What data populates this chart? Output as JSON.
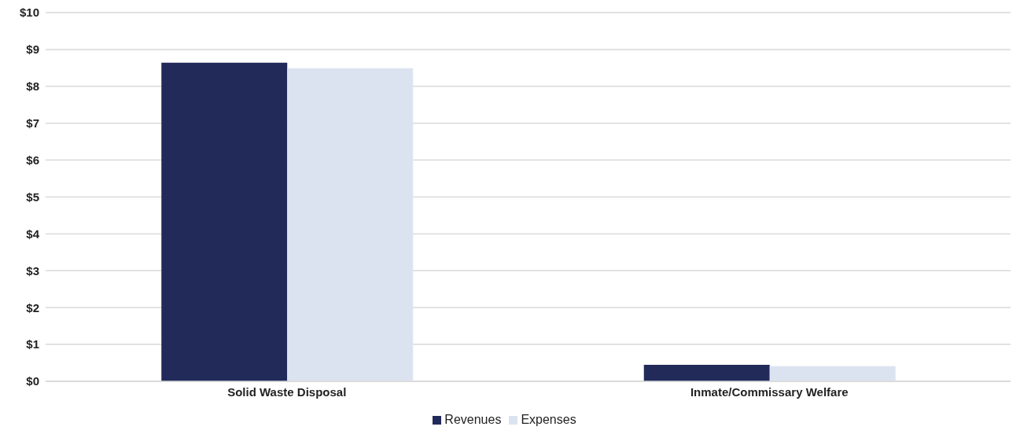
{
  "chart_data": {
    "type": "bar",
    "categories": [
      "Solid Waste Disposal",
      "Inmate/Commissary Welfare"
    ],
    "series": [
      {
        "name": "Revenues",
        "color": "#222a5a",
        "values": [
          8.64,
          0.45
        ]
      },
      {
        "name": "Expenses",
        "color": "#dce3f0",
        "values": [
          8.49,
          0.41
        ]
      }
    ],
    "ylim": [
      0,
      10
    ],
    "yticks": [
      {
        "value": 0,
        "label": "$0"
      },
      {
        "value": 1,
        "label": "$1"
      },
      {
        "value": 2,
        "label": "$2"
      },
      {
        "value": 3,
        "label": "$3"
      },
      {
        "value": 4,
        "label": "$4"
      },
      {
        "value": 5,
        "label": "$5"
      },
      {
        "value": 6,
        "label": "$6"
      },
      {
        "value": 7,
        "label": "$7"
      },
      {
        "value": 8,
        "label": "$8"
      },
      {
        "value": 9,
        "label": "$9"
      },
      {
        "value": 10,
        "label": "$10"
      }
    ],
    "grid": "y",
    "legend": "bottom"
  }
}
